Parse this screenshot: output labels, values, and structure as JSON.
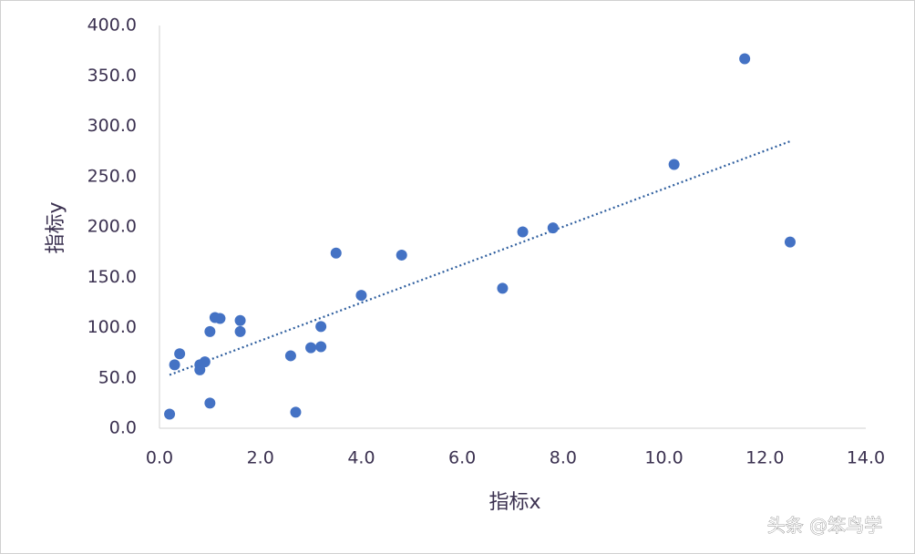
{
  "chart_data": {
    "type": "scatter",
    "x_label": "指标x",
    "y_label": "指标y",
    "watermark": "头条 @笨鸟学",
    "color": "#4472c4",
    "x": [
      0.2,
      0.3,
      0.4,
      0.8,
      0.8,
      0.9,
      1.0,
      1.0,
      1.1,
      1.2,
      1.6,
      1.6,
      2.6,
      2.7,
      3.0,
      3.2,
      3.2,
      3.5,
      4.0,
      4.8,
      6.8,
      7.2,
      7.8,
      10.2,
      11.6,
      12.5
    ],
    "values": [
      14,
      63,
      74,
      58,
      63,
      66,
      96,
      25,
      110,
      109,
      107,
      96,
      72,
      16,
      80,
      101,
      81,
      174,
      132,
      172,
      139,
      195,
      199,
      262,
      367,
      185
    ],
    "trendline": {
      "x": [
        0.2,
        12.5
      ],
      "y": [
        53,
        285
      ],
      "color": "#2e5e9e"
    },
    "xlim": [
      0,
      14
    ],
    "ylim": [
      0,
      400
    ],
    "xticks": [
      {
        "value": 0,
        "label": "0.0"
      },
      {
        "value": 2,
        "label": "2.0"
      },
      {
        "value": 4,
        "label": "4.0"
      },
      {
        "value": 6,
        "label": "6.0"
      },
      {
        "value": 8,
        "label": "8.0"
      },
      {
        "value": 10,
        "label": "10.0"
      },
      {
        "value": 12,
        "label": "12.0"
      },
      {
        "value": 14,
        "label": "14.0"
      }
    ],
    "yticks": [
      {
        "value": 0,
        "label": "0.0"
      },
      {
        "value": 50,
        "label": "50.0"
      },
      {
        "value": 100,
        "label": "100.0"
      },
      {
        "value": 150,
        "label": "150.0"
      },
      {
        "value": 200,
        "label": "200.0"
      },
      {
        "value": 250,
        "label": "250.0"
      },
      {
        "value": 300,
        "label": "300.0"
      },
      {
        "value": 350,
        "label": "350.0"
      },
      {
        "value": 400,
        "label": "400.0"
      }
    ],
    "grid": false
  }
}
